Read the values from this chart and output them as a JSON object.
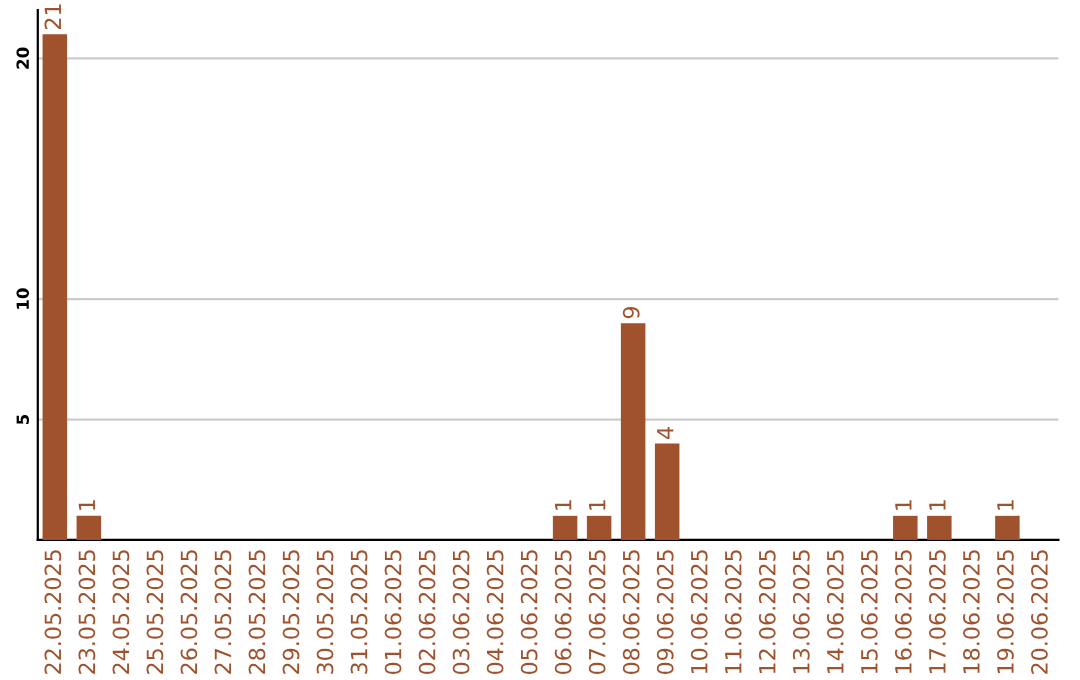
{
  "chart_data": {
    "type": "bar",
    "categories": [
      "22.05.2025",
      "23.05.2025",
      "24.05.2025",
      "25.05.2025",
      "26.05.2025",
      "27.05.2025",
      "28.05.2025",
      "29.05.2025",
      "30.05.2025",
      "31.05.2025",
      "01.06.2025",
      "02.06.2025",
      "03.06.2025",
      "04.06.2025",
      "05.06.2025",
      "06.06.2025",
      "07.06.2025",
      "08.06.2025",
      "09.06.2025",
      "10.06.2025",
      "11.06.2025",
      "12.06.2025",
      "13.06.2025",
      "14.06.2025",
      "15.06.2025",
      "16.06.2025",
      "17.06.2025",
      "18.06.2025",
      "19.06.2025",
      "20.06.2025"
    ],
    "values": [
      21,
      1,
      0,
      0,
      0,
      0,
      0,
      0,
      0,
      0,
      0,
      0,
      0,
      0,
      0,
      1,
      1,
      9,
      4,
      0,
      0,
      0,
      0,
      0,
      0,
      1,
      1,
      0,
      1,
      0
    ],
    "value_labels": [
      "21",
      "1",
      null,
      null,
      null,
      null,
      null,
      null,
      null,
      null,
      null,
      null,
      null,
      null,
      null,
      "1",
      "1",
      "9",
      "4",
      null,
      null,
      null,
      null,
      null,
      null,
      "1",
      "1",
      null,
      "1",
      null
    ],
    "color": "#a0522d",
    "ylim": [
      0,
      22
    ],
    "yticks": [
      5,
      10,
      20
    ],
    "grid": "y"
  }
}
